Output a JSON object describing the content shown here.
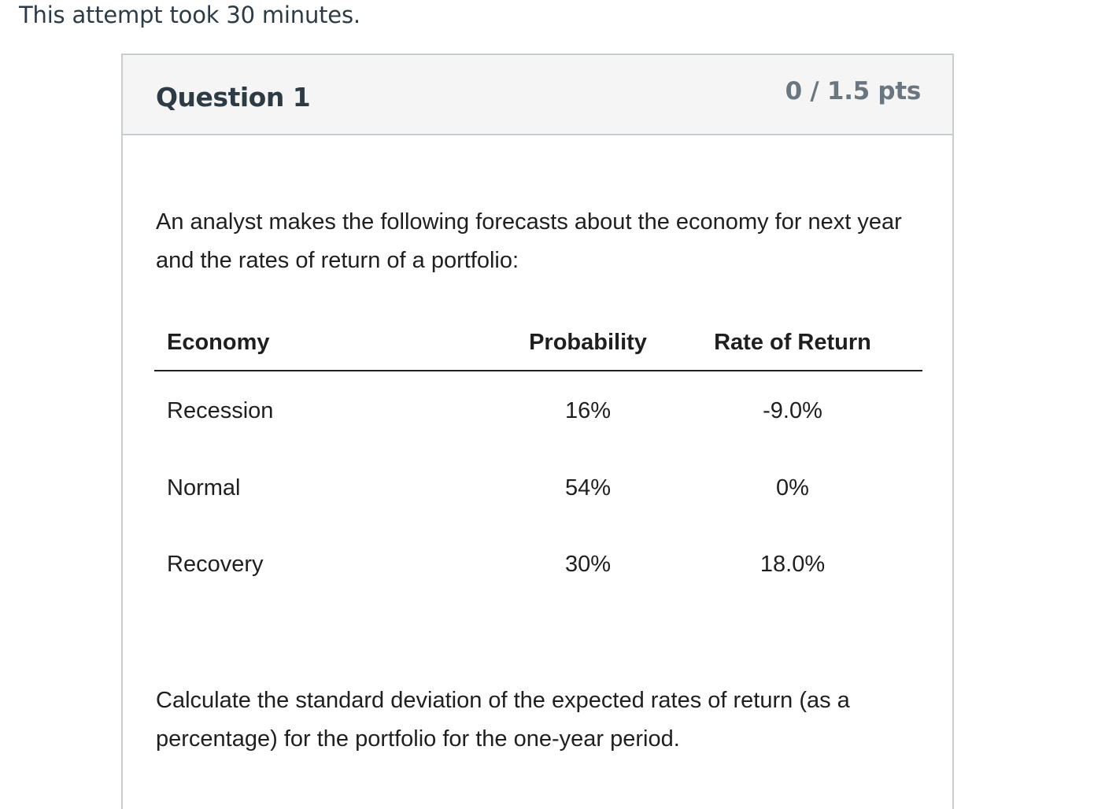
{
  "attempt_note": "This attempt took 30 minutes.",
  "question": {
    "title": "Question 1",
    "points": "0 / 1.5 pts",
    "intro": "An analyst makes the following forecasts about the economy for next year and the rates of return of a portfolio:",
    "table": {
      "headers": [
        "Economy",
        "Probability",
        "Rate of Return"
      ],
      "rows": [
        [
          "Recession",
          "16%",
          "-9.0%"
        ],
        [
          "Normal",
          "54%",
          "0%"
        ],
        [
          "Recovery",
          "30%",
          "18.0%"
        ]
      ]
    },
    "prompt": "Calculate the standard deviation of the expected rates of return (as a percentage) for the portfolio for the one-year period."
  }
}
